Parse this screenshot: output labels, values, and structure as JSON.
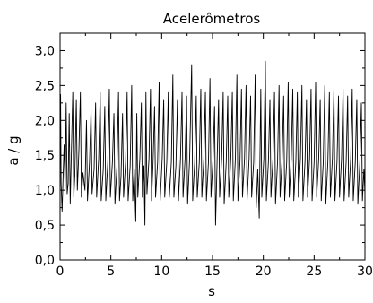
{
  "chart_data": {
    "type": "line",
    "title": "Acelerômetros",
    "xlabel": "s",
    "ylabel": "a / g",
    "xlim": [
      0,
      30
    ],
    "ylim": [
      0.0,
      3.25
    ],
    "x_ticks": [
      0,
      5,
      10,
      15,
      20,
      25,
      30
    ],
    "x_tick_labels": [
      "0",
      "5",
      "10",
      "15",
      "20",
      "25",
      "30"
    ],
    "y_ticks": [
      0.0,
      0.5,
      1.0,
      1.5,
      2.0,
      2.5,
      3.0
    ],
    "y_tick_labels": [
      "0,0",
      "0,5",
      "1,0",
      "1,5",
      "2,0",
      "2,5",
      "3,0"
    ],
    "grid": false,
    "line_color": "#000000",
    "series": [
      {
        "points": [
          [
            0.0,
            1.2
          ],
          [
            0.05,
            2.37
          ],
          [
            0.1,
            1.1
          ],
          [
            0.2,
            0.7
          ],
          [
            0.3,
            1.2
          ],
          [
            0.4,
            1.65
          ],
          [
            0.5,
            1.0
          ],
          [
            0.6,
            2.25
          ],
          [
            0.7,
            0.95
          ],
          [
            0.8,
            1.1
          ],
          [
            0.9,
            2.1
          ],
          [
            1.0,
            0.8
          ],
          [
            1.1,
            1.45
          ],
          [
            1.25,
            2.4
          ],
          [
            1.35,
            0.9
          ],
          [
            1.45,
            1.2
          ],
          [
            1.6,
            2.3
          ],
          [
            1.7,
            1.0
          ],
          [
            1.85,
            1.55
          ],
          [
            2.0,
            2.4
          ],
          [
            2.1,
            0.9
          ],
          [
            2.25,
            1.25
          ],
          [
            2.45,
            1.0
          ],
          [
            2.6,
            2.0
          ],
          [
            2.7,
            0.85
          ],
          [
            2.9,
            1.4
          ],
          [
            3.05,
            2.15
          ],
          [
            3.15,
            0.95
          ],
          [
            3.35,
            1.3
          ],
          [
            3.5,
            2.25
          ],
          [
            3.6,
            0.9
          ],
          [
            3.8,
            1.45
          ],
          [
            3.95,
            2.4
          ],
          [
            4.05,
            0.85
          ],
          [
            4.25,
            1.3
          ],
          [
            4.4,
            2.2
          ],
          [
            4.5,
            0.85
          ],
          [
            4.7,
            1.4
          ],
          [
            4.85,
            2.45
          ],
          [
            4.95,
            0.9
          ],
          [
            5.15,
            1.4
          ],
          [
            5.3,
            2.1
          ],
          [
            5.4,
            0.8
          ],
          [
            5.6,
            1.35
          ],
          [
            5.75,
            2.4
          ],
          [
            5.85,
            0.85
          ],
          [
            6.0,
            1.2
          ],
          [
            6.15,
            2.1
          ],
          [
            6.25,
            0.9
          ],
          [
            6.45,
            1.4
          ],
          [
            6.6,
            2.4
          ],
          [
            6.7,
            0.85
          ],
          [
            6.9,
            1.35
          ],
          [
            7.05,
            2.5
          ],
          [
            7.15,
            0.85
          ],
          [
            7.3,
            1.3
          ],
          [
            7.45,
            0.55
          ],
          [
            7.55,
            2.1
          ],
          [
            7.65,
            0.9
          ],
          [
            7.85,
            1.45
          ],
          [
            8.0,
            2.25
          ],
          [
            8.1,
            0.9
          ],
          [
            8.25,
            1.35
          ],
          [
            8.35,
            0.5
          ],
          [
            8.45,
            2.4
          ],
          [
            8.55,
            0.95
          ],
          [
            8.75,
            1.45
          ],
          [
            8.9,
            2.45
          ],
          [
            9.0,
            0.85
          ],
          [
            9.15,
            1.4
          ],
          [
            9.3,
            2.2
          ],
          [
            9.4,
            0.9
          ],
          [
            9.6,
            1.4
          ],
          [
            9.75,
            2.55
          ],
          [
            9.85,
            0.85
          ],
          [
            10.05,
            1.45
          ],
          [
            10.2,
            2.3
          ],
          [
            10.3,
            0.9
          ],
          [
            10.5,
            1.4
          ],
          [
            10.65,
            2.4
          ],
          [
            10.75,
            0.9
          ],
          [
            10.95,
            1.4
          ],
          [
            11.1,
            2.65
          ],
          [
            11.2,
            0.9
          ],
          [
            11.4,
            1.35
          ],
          [
            11.55,
            2.3
          ],
          [
            11.65,
            0.85
          ],
          [
            11.85,
            1.45
          ],
          [
            12.0,
            2.4
          ],
          [
            12.1,
            0.9
          ],
          [
            12.3,
            1.45
          ],
          [
            12.45,
            2.35
          ],
          [
            12.55,
            0.8
          ],
          [
            12.75,
            1.45
          ],
          [
            12.95,
            2.8
          ],
          [
            13.05,
            0.85
          ],
          [
            13.25,
            1.4
          ],
          [
            13.4,
            2.35
          ],
          [
            13.5,
            0.9
          ],
          [
            13.7,
            1.4
          ],
          [
            13.85,
            2.45
          ],
          [
            13.95,
            0.9
          ],
          [
            14.15,
            1.45
          ],
          [
            14.3,
            2.4
          ],
          [
            14.4,
            0.85
          ],
          [
            14.6,
            1.4
          ],
          [
            14.75,
            2.6
          ],
          [
            14.85,
            0.9
          ],
          [
            15.05,
            1.45
          ],
          [
            15.2,
            2.2
          ],
          [
            15.3,
            0.5
          ],
          [
            15.45,
            1.4
          ],
          [
            15.6,
            2.3
          ],
          [
            15.7,
            0.9
          ],
          [
            15.9,
            1.45
          ],
          [
            16.05,
            2.4
          ],
          [
            16.15,
            0.8
          ],
          [
            16.35,
            1.4
          ],
          [
            16.5,
            2.35
          ],
          [
            16.6,
            0.9
          ],
          [
            16.8,
            1.45
          ],
          [
            16.95,
            2.4
          ],
          [
            17.05,
            0.85
          ],
          [
            17.25,
            1.45
          ],
          [
            17.4,
            2.65
          ],
          [
            17.5,
            0.85
          ],
          [
            17.7,
            1.4
          ],
          [
            17.85,
            2.45
          ],
          [
            17.95,
            0.9
          ],
          [
            18.15,
            1.45
          ],
          [
            18.3,
            2.5
          ],
          [
            18.4,
            0.85
          ],
          [
            18.6,
            1.45
          ],
          [
            18.75,
            2.35
          ],
          [
            18.85,
            0.9
          ],
          [
            19.05,
            1.4
          ],
          [
            19.2,
            2.65
          ],
          [
            19.3,
            0.75
          ],
          [
            19.45,
            1.3
          ],
          [
            19.6,
            0.6
          ],
          [
            19.75,
            2.45
          ],
          [
            19.85,
            0.9
          ],
          [
            20.05,
            1.45
          ],
          [
            20.2,
            2.85
          ],
          [
            20.3,
            0.85
          ],
          [
            20.5,
            1.4
          ],
          [
            20.65,
            2.3
          ],
          [
            20.75,
            0.9
          ],
          [
            20.95,
            1.45
          ],
          [
            21.1,
            2.4
          ],
          [
            21.2,
            0.8
          ],
          [
            21.4,
            1.4
          ],
          [
            21.55,
            2.5
          ],
          [
            21.65,
            0.9
          ],
          [
            21.85,
            1.45
          ],
          [
            22.0,
            2.35
          ],
          [
            22.1,
            0.85
          ],
          [
            22.3,
            1.4
          ],
          [
            22.45,
            2.55
          ],
          [
            22.55,
            0.9
          ],
          [
            22.75,
            1.45
          ],
          [
            22.9,
            2.45
          ],
          [
            23.0,
            0.85
          ],
          [
            23.2,
            1.4
          ],
          [
            23.35,
            2.4
          ],
          [
            23.45,
            0.9
          ],
          [
            23.65,
            1.45
          ],
          [
            23.8,
            2.5
          ],
          [
            23.9,
            0.85
          ],
          [
            24.1,
            1.4
          ],
          [
            24.25,
            2.3
          ],
          [
            24.35,
            0.9
          ],
          [
            24.55,
            1.45
          ],
          [
            24.7,
            2.45
          ],
          [
            24.8,
            0.85
          ],
          [
            25.0,
            1.4
          ],
          [
            25.15,
            2.55
          ],
          [
            25.25,
            0.9
          ],
          [
            25.45,
            1.45
          ],
          [
            25.6,
            2.3
          ],
          [
            25.7,
            0.85
          ],
          [
            25.9,
            1.4
          ],
          [
            26.05,
            2.5
          ],
          [
            26.15,
            0.8
          ],
          [
            26.35,
            1.4
          ],
          [
            26.5,
            2.4
          ],
          [
            26.6,
            0.9
          ],
          [
            26.8,
            1.45
          ],
          [
            26.95,
            2.45
          ],
          [
            27.05,
            0.85
          ],
          [
            27.25,
            1.4
          ],
          [
            27.4,
            2.35
          ],
          [
            27.5,
            0.9
          ],
          [
            27.7,
            1.45
          ],
          [
            27.85,
            2.45
          ],
          [
            27.95,
            0.85
          ],
          [
            28.15,
            1.4
          ],
          [
            28.3,
            2.35
          ],
          [
            28.4,
            0.9
          ],
          [
            28.6,
            1.45
          ],
          [
            28.75,
            2.45
          ],
          [
            28.85,
            0.85
          ],
          [
            29.05,
            1.4
          ],
          [
            29.2,
            2.3
          ],
          [
            29.3,
            0.8
          ],
          [
            29.5,
            1.4
          ],
          [
            29.65,
            2.25
          ],
          [
            29.75,
            0.85
          ],
          [
            29.9,
            1.3
          ],
          [
            30.0,
            0.95
          ]
        ]
      }
    ]
  }
}
